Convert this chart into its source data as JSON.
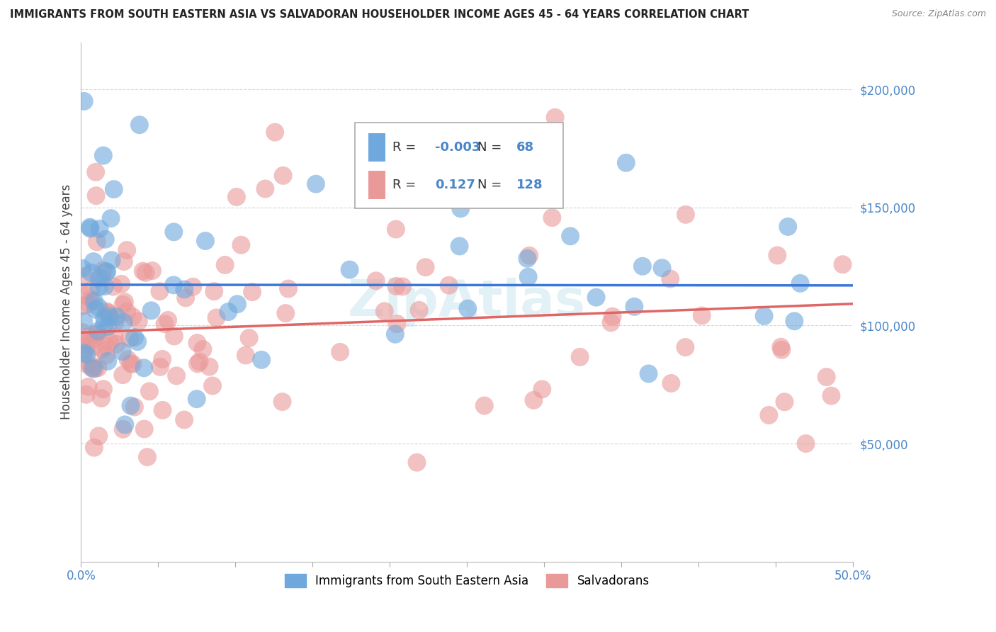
{
  "title": "IMMIGRANTS FROM SOUTH EASTERN ASIA VS SALVADORAN HOUSEHOLDER INCOME AGES 45 - 64 YEARS CORRELATION CHART",
  "source": "Source: ZipAtlas.com",
  "ylabel": "Householder Income Ages 45 - 64 years",
  "xlim": [
    0.0,
    0.5
  ],
  "ylim": [
    0,
    220000
  ],
  "ytick_vals": [
    0,
    50000,
    100000,
    150000,
    200000
  ],
  "ytick_labels": [
    "",
    "$50,000",
    "$100,000",
    "$150,000",
    "$200,000"
  ],
  "xtick_vals": [
    0.0,
    0.05,
    0.1,
    0.15,
    0.2,
    0.25,
    0.3,
    0.35,
    0.4,
    0.45,
    0.5
  ],
  "xtick_major_vals": [
    0.0,
    0.5
  ],
  "xtick_major_labels": [
    "0.0%",
    "50.0%"
  ],
  "blue_R": -0.003,
  "blue_N": 68,
  "pink_R": 0.127,
  "pink_N": 128,
  "blue_color": "#6fa8dc",
  "pink_color": "#ea9999",
  "blue_line_color": "#3c78d8",
  "pink_line_color": "#e06666",
  "label_color": "#4a86c8",
  "watermark": "ZipAtlas",
  "legend_label_1": "Immigrants from South Eastern Asia",
  "legend_label_2": "Salvadorans"
}
